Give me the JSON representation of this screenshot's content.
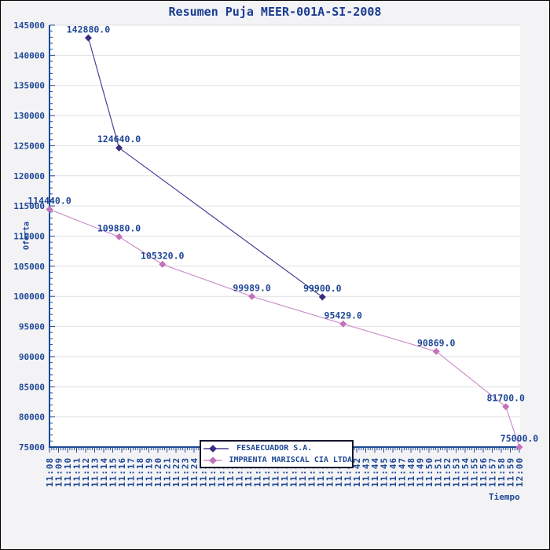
{
  "title": "Resumen Puja MEER-001A-SI-2008",
  "chart_data": {
    "type": "line",
    "title": "Resumen Puja MEER-001A-SI-2008",
    "xlabel": "Tiempo",
    "ylabel": "Oferta",
    "ylim": [
      75000,
      145000
    ],
    "y_tick_step": 5000,
    "y_minor_step": 1000,
    "grid": "horizontal-major",
    "legend_position": "bottom-center-inside",
    "y_ticks": [
      "145000",
      "140000",
      "135000",
      "130000",
      "125000",
      "120000",
      "115000",
      "110000",
      "105000",
      "100000",
      "95000",
      "90000",
      "85000",
      "80000",
      "75000"
    ],
    "x_ticks": [
      "11:08",
      "11:09",
      "11:10",
      "11:11",
      "11:12",
      "11:13",
      "11:14",
      "11:15",
      "11:16",
      "11:17",
      "11:18",
      "11:19",
      "11:20",
      "11:21",
      "11:22",
      "11:23",
      "11:24",
      "11:25",
      "11:26",
      "11:27",
      "11:28",
      "11:29",
      "11:30",
      "11:31",
      "11:32",
      "11:33",
      "11:34",
      "11:35",
      "11:36",
      "11:37",
      "11:38",
      "11:39",
      "11:40",
      "11:41",
      "11:42",
      "11:43",
      "11:44",
      "11:45",
      "11:46",
      "11:47",
      "11:48",
      "11:49",
      "11:50",
      "11:51",
      "11:52",
      "11:53",
      "11:54",
      "11:55",
      "11:56",
      "11:57",
      "11:58",
      "11:59",
      "12:00"
    ],
    "series": [
      {
        "name": "FESAECUADOR S.A.",
        "color": "#3a2d80",
        "line_color": "#4d3e96",
        "points": [
          {
            "time": "11:12",
            "t_min": 4.3,
            "value": 142880.0,
            "label": "142880.0"
          },
          {
            "time": "11:16",
            "t_min": 7.7,
            "value": 124640.0,
            "label": "124640.0"
          },
          {
            "time": "11:38",
            "t_min": 30.2,
            "value": 99900.0,
            "label": "99900.0"
          }
        ]
      },
      {
        "name": "IMPRENTA MARISCAL CIA LTDA",
        "color": "#c272bb",
        "line_color": "#cd90c8",
        "points": [
          {
            "time": "11:08",
            "t_min": 0,
            "value": 114440.0,
            "label": "114440.0"
          },
          {
            "time": "11:16",
            "t_min": 7.7,
            "value": 109880.0,
            "label": "109880.0"
          },
          {
            "time": "11:21",
            "t_min": 12.5,
            "value": 105320.0,
            "label": "105320.0"
          },
          {
            "time": "11:30",
            "t_min": 22.4,
            "value": 99989.0,
            "label": "99989.0"
          },
          {
            "time": "11:41",
            "t_min": 32.5,
            "value": 95429.0,
            "label": "95429.0"
          },
          {
            "time": "11:51",
            "t_min": 42.8,
            "value": 90869.0,
            "label": "90869.0"
          },
          {
            "time": "11:58",
            "t_min": 50.5,
            "value": 81700.0,
            "label": "81700.0"
          },
          {
            "time": "12:00",
            "t_min": 52,
            "value": 75000.0,
            "label": "75000.0"
          }
        ]
      }
    ],
    "colors": {
      "background": "#f3f3f5",
      "plot_background": "#ffffff",
      "gridline": "#e1e1e5",
      "axis": "#1c4a97",
      "tick_text": "#1e4796",
      "label_text": "#1e4796",
      "title_text": "#1b3c92"
    }
  }
}
